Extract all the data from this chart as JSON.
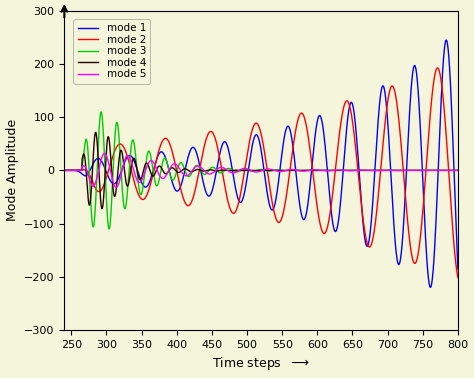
{
  "title": "",
  "xlabel": "Time steps",
  "ylabel": "Mode Amplitude",
  "xlim": [
    240,
    800
  ],
  "ylim": [
    -300,
    300
  ],
  "xticks": [
    250,
    300,
    350,
    400,
    450,
    500,
    550,
    600,
    650,
    700,
    750,
    800
  ],
  "yticks": [
    -300,
    -200,
    -100,
    0,
    100,
    200,
    300
  ],
  "legend_labels": [
    "mode 1",
    "mode 2",
    "mode 3",
    "mode 4",
    "mode 5"
  ],
  "colors": [
    "#0000FF",
    "#FF0000",
    "#00CC00",
    "#2B0000",
    "#FF00FF"
  ],
  "background_color": "#F5F5DC",
  "mode1": {
    "freq": 0.0222,
    "growth_rate": 0.0048,
    "phase": 1.2,
    "peak_at_800": 265,
    "start": 240
  },
  "mode2": {
    "freq": 0.0155,
    "growth_rate": 0.003,
    "phase": 2.1,
    "peak_at_800": 210,
    "start": 260
  },
  "mode3": {
    "freq": 0.044,
    "decay_rate": 0.02,
    "amplitude": 110,
    "peak": 305,
    "start": 265
  },
  "mode4": {
    "freq": 0.055,
    "decay_rate": 0.028,
    "amplitude": 72,
    "peak": 298,
    "start": 265
  },
  "mode5": {
    "freq": 0.03,
    "decay_rate": 0.012,
    "amplitude": 32,
    "peak": 318,
    "start": 265
  }
}
